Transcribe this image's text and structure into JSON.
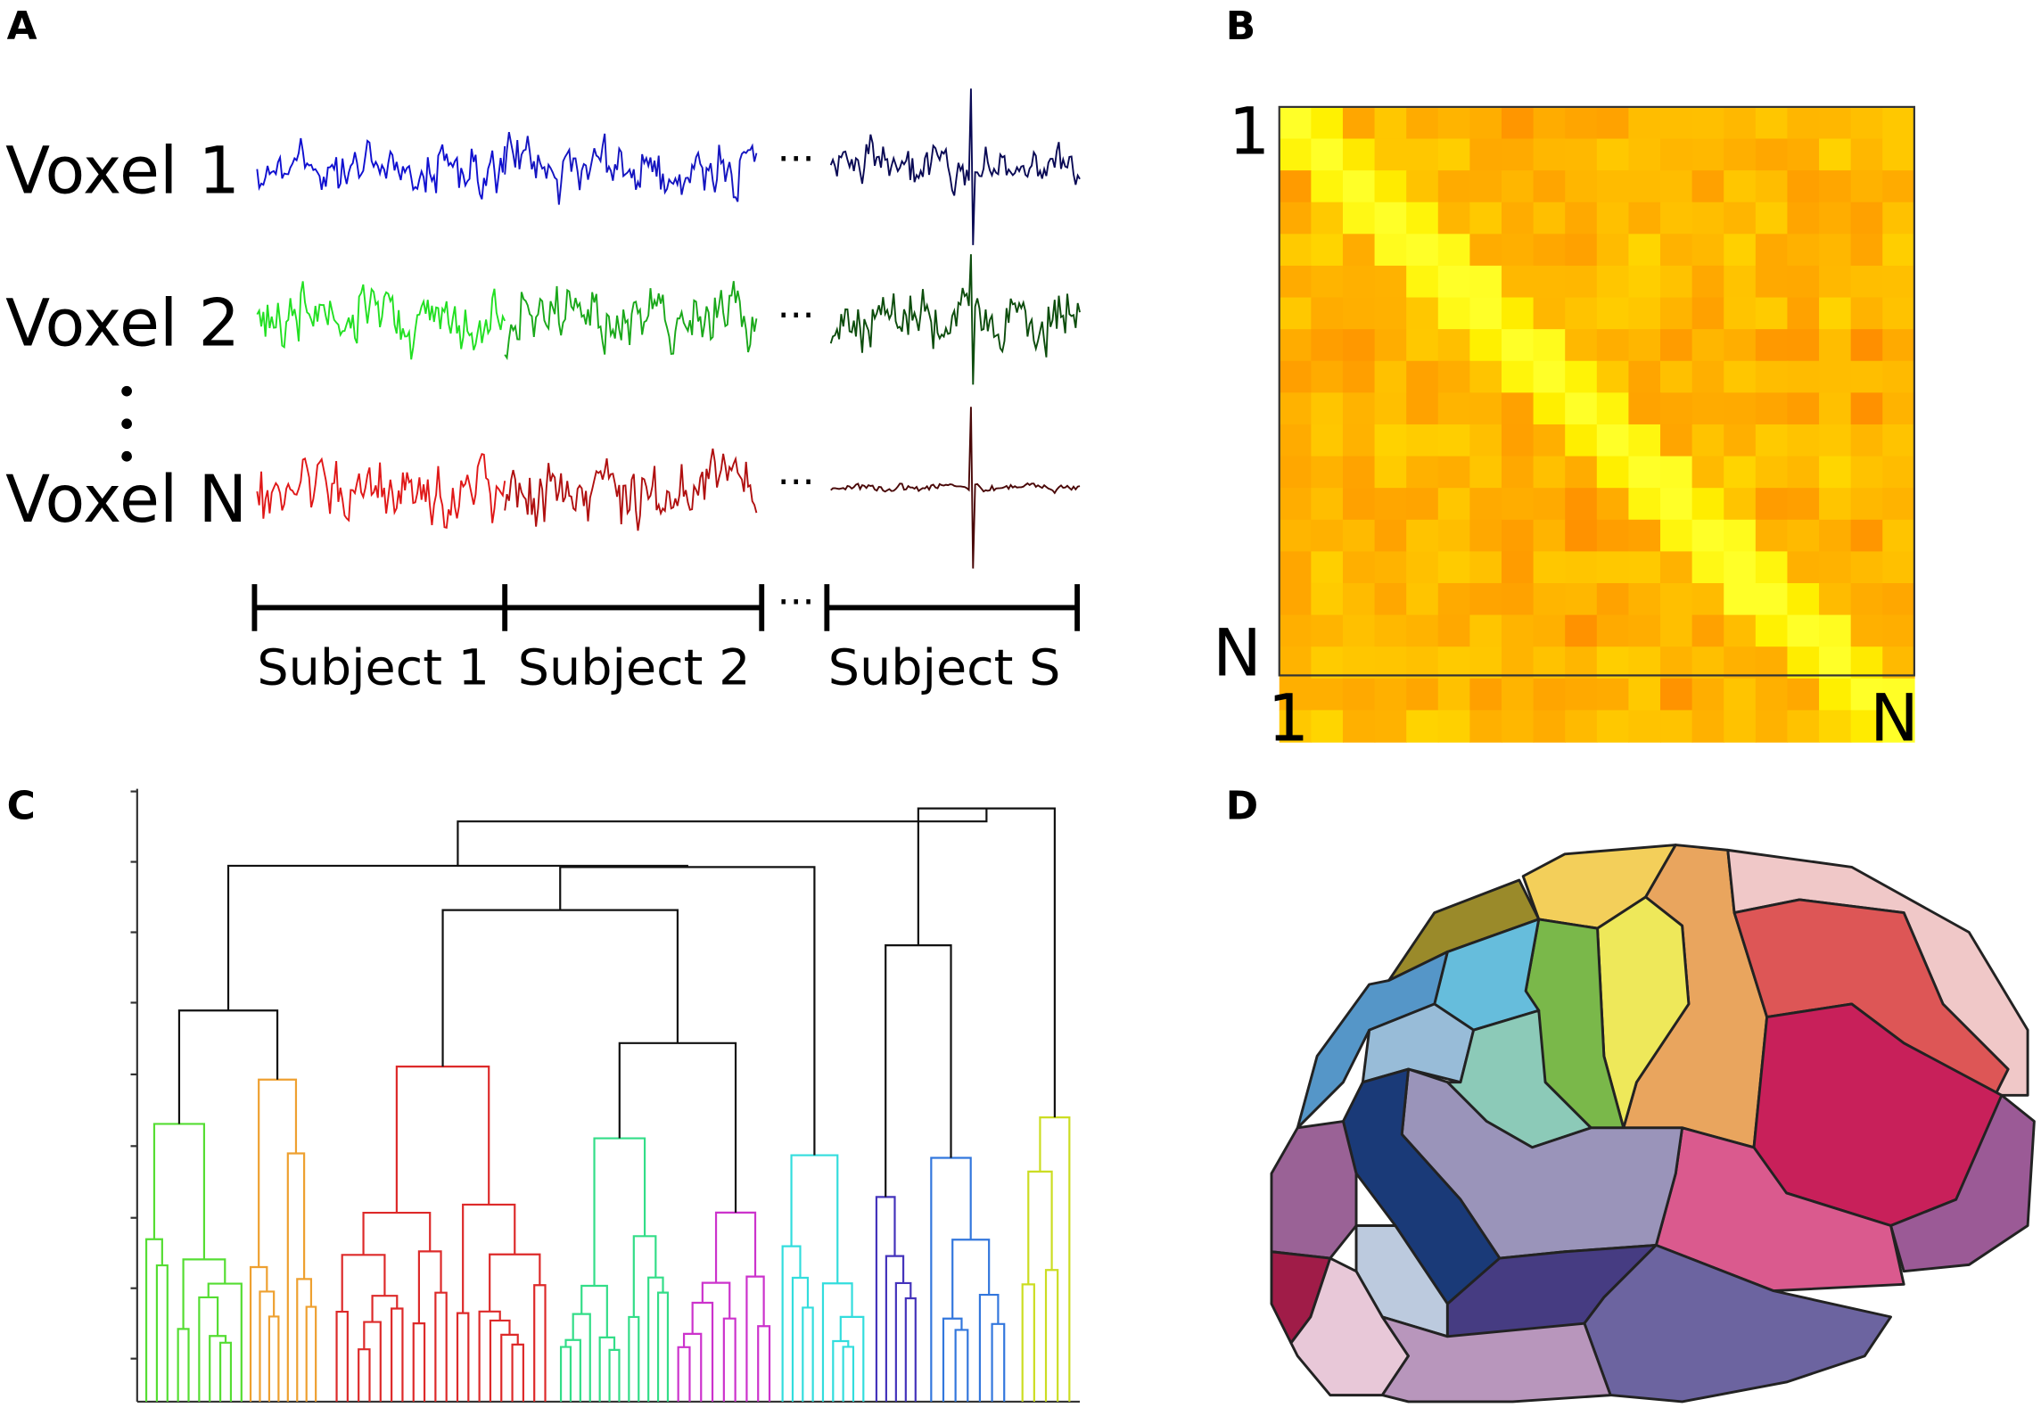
{
  "panels": {
    "a": {
      "label": "A",
      "rows": [
        "Voxel 1",
        "Voxel 2",
        "Voxel N"
      ],
      "subjects": [
        "Subject 1",
        "Subject 2",
        "Subject S"
      ],
      "ellipsis": "···"
    },
    "b": {
      "label": "B",
      "row_start": "1",
      "row_end": "N",
      "col_start": "1",
      "col_end": "N"
    },
    "c": {
      "label": "C"
    },
    "d": {
      "label": "D"
    }
  }
}
